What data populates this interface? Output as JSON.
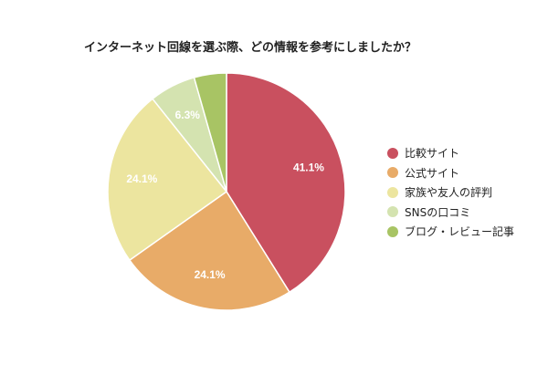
{
  "chart_data": {
    "type": "pie",
    "title": "インターネット回線を選ぶ際、どの情報を参考にしましたか？",
    "slices": [
      {
        "label": "比較サイト",
        "value": 41.1,
        "value_label": "41.1%",
        "color": "#c9505f"
      },
      {
        "label": "公式サイト",
        "value": 24.1,
        "value_label": "24.1%",
        "color": "#e8ab68"
      },
      {
        "label": "家族や友人の評判",
        "value": 24.1,
        "value_label": "24.1%",
        "color": "#ece59f"
      },
      {
        "label": "SNSの口コミ",
        "value": 6.3,
        "value_label": "6.3%",
        "color": "#d4e3b0"
      },
      {
        "label": "ブログ・レビュー記事",
        "value": 4.4,
        "value_label": "",
        "color": "#a8c464"
      }
    ],
    "legend_position": "right"
  }
}
